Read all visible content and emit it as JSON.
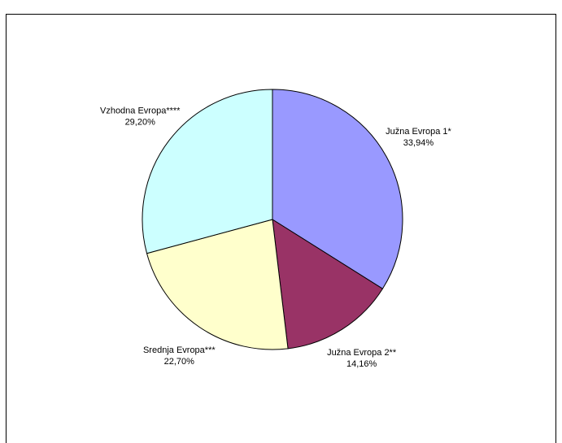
{
  "chart_data": {
    "type": "pie",
    "categories": [
      "Južna Evropa 1*",
      "Južna Evropa 2**",
      "Srednja Evropa***",
      "Vzhodna Evropa****"
    ],
    "values": [
      33.94,
      14.16,
      22.7,
      29.2
    ],
    "value_labels": [
      "33,94%",
      "14,16%",
      "22,70%",
      "29,20%"
    ],
    "colors": [
      "#9999ff",
      "#993366",
      "#ffffcc",
      "#ccffff"
    ]
  }
}
